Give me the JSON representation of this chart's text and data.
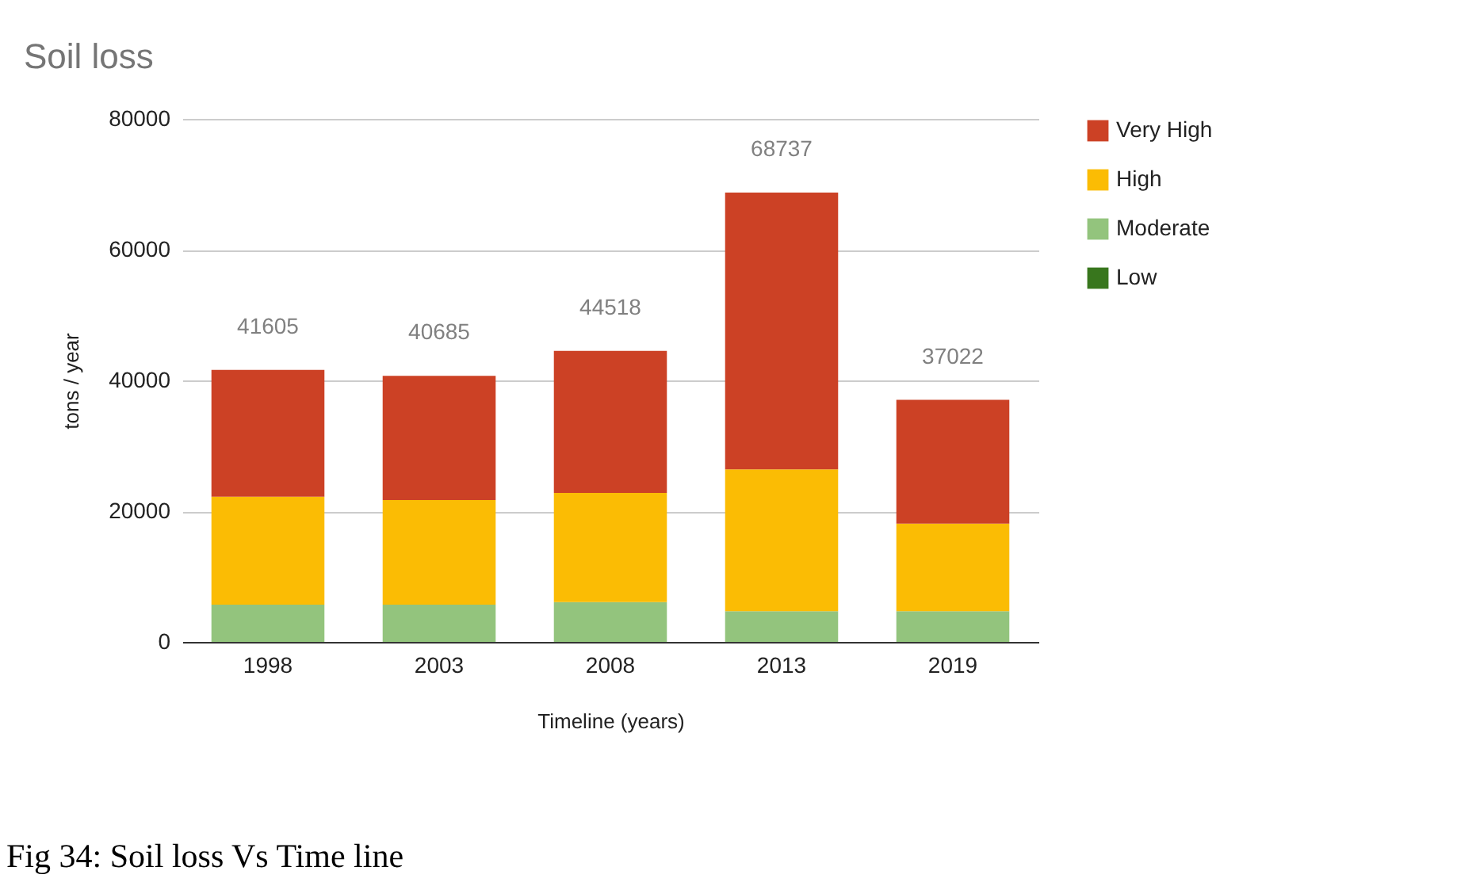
{
  "chart_data": {
    "type": "bar",
    "title": "Soil loss",
    "xlabel": "Timeline (years)",
    "ylabel": "tons / year",
    "categories": [
      "1998",
      "2003",
      "2008",
      "2013",
      "2019"
    ],
    "series": [
      {
        "name": "Low",
        "color": "#38761d",
        "values": [
          0,
          0,
          0,
          0,
          0
        ]
      },
      {
        "name": "Moderate",
        "color": "#93c47d",
        "values": [
          5700,
          5700,
          6100,
          4700,
          4700
        ]
      },
      {
        "name": "High",
        "color": "#fbbc04",
        "values": [
          16500,
          16000,
          16700,
          21700,
          13400
        ]
      },
      {
        "name": "Very High",
        "color": "#cc4125",
        "values": [
          19405,
          18985,
          21718,
          42337,
          18922
        ]
      }
    ],
    "stacked": true,
    "totals": [
      "41605",
      "40685",
      "44518",
      "68737",
      "37022"
    ],
    "ylim": [
      0,
      80000
    ],
    "yticks": [
      0,
      20000,
      40000,
      60000,
      80000
    ],
    "grid": "y",
    "legend": "top right",
    "annotations": [
      "Fig 34: Soil loss Vs Time line"
    ]
  }
}
